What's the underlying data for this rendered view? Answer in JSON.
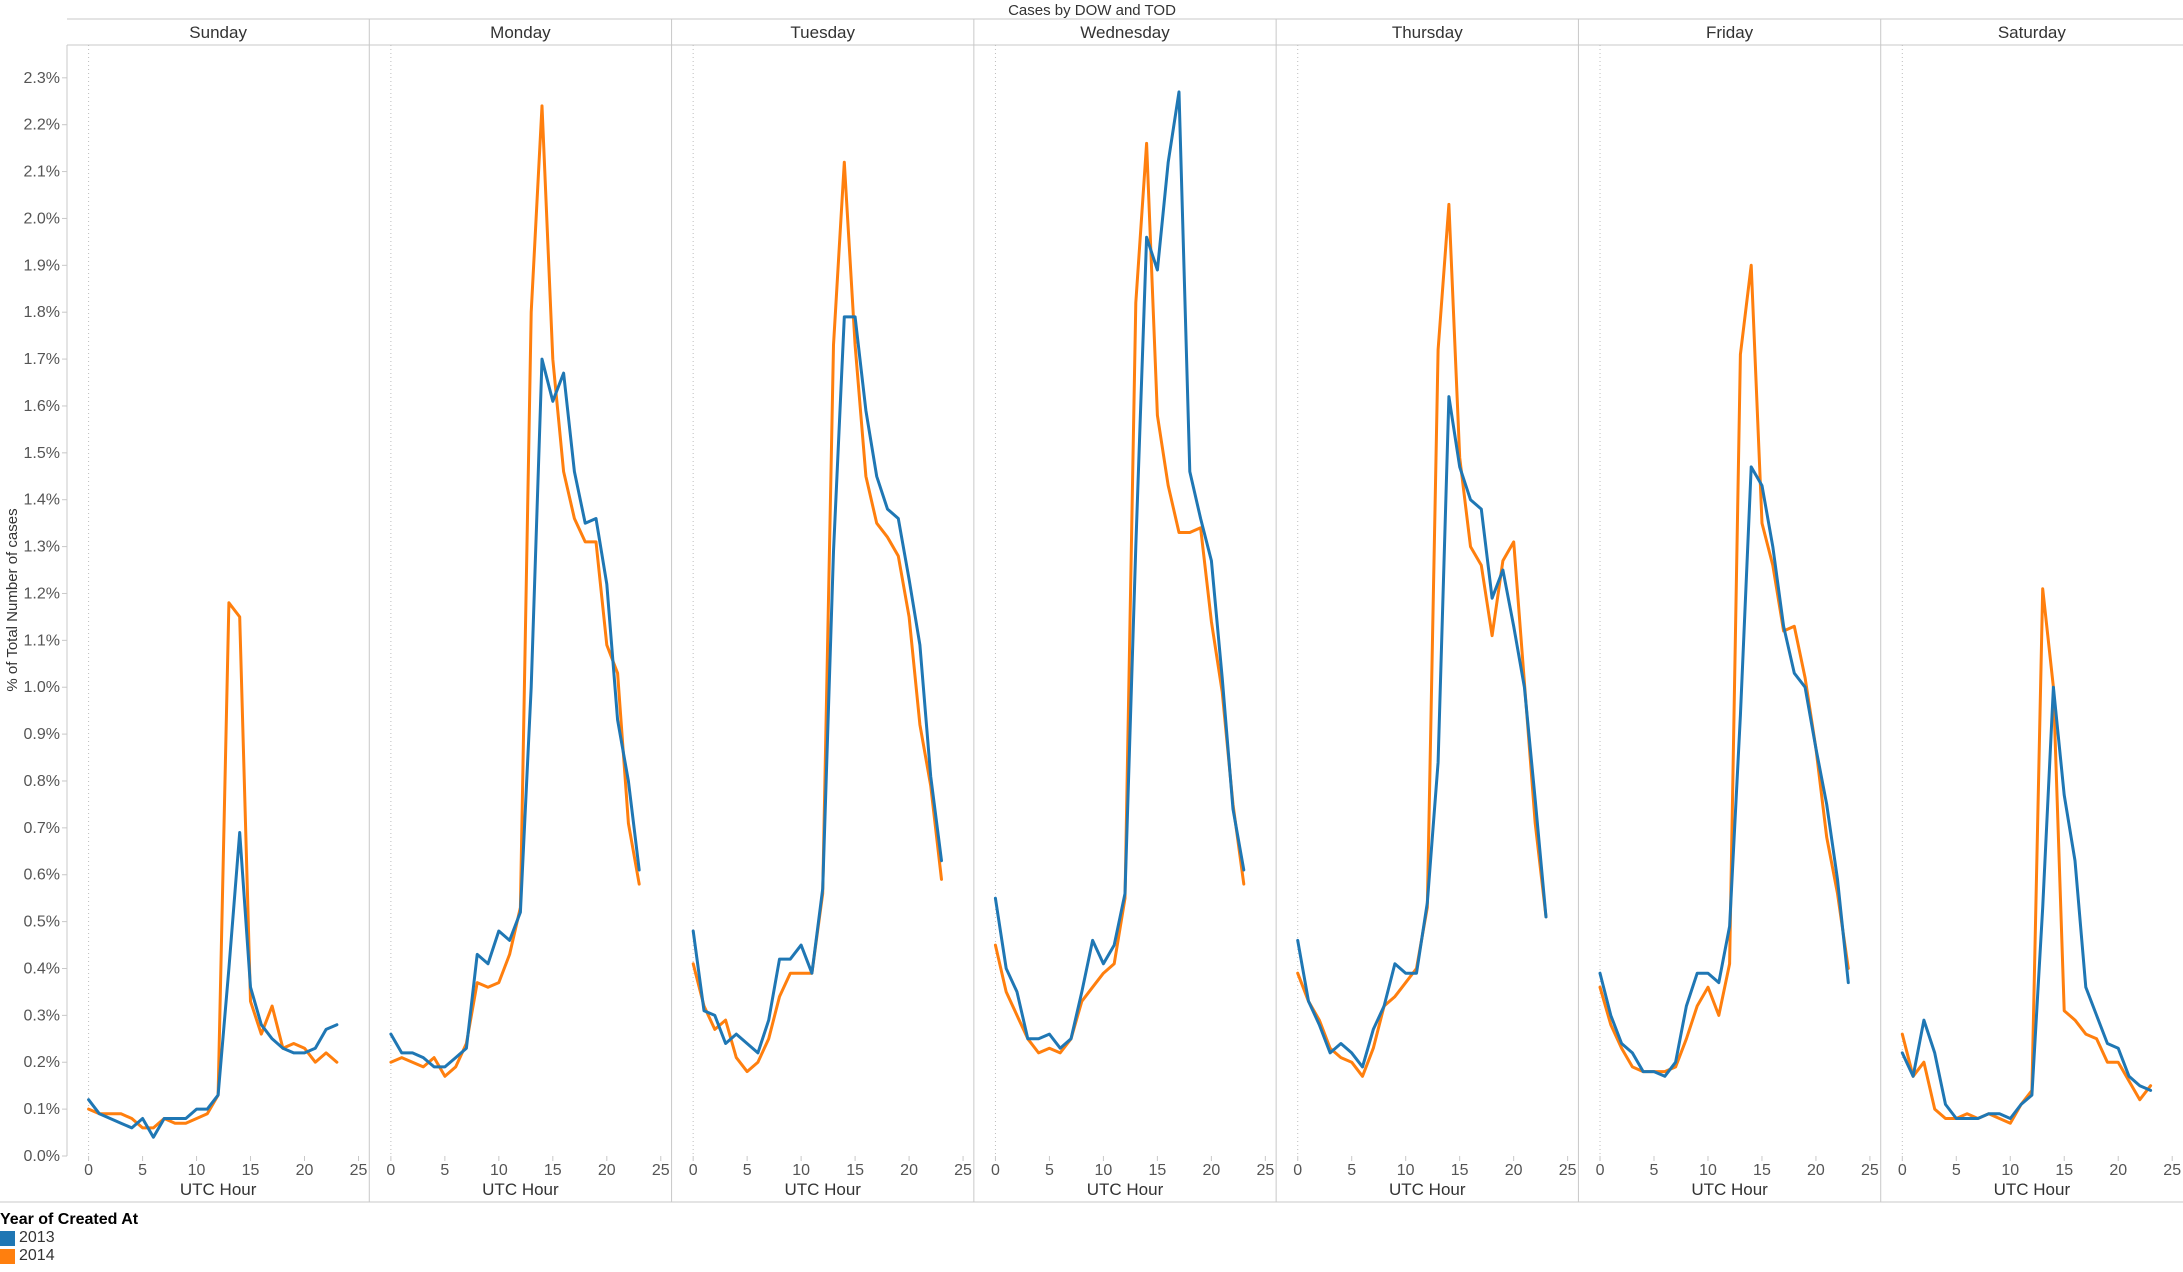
{
  "chart_data": {
    "type": "line",
    "title": "Cases by DOW and TOD",
    "panels": [
      "Sunday",
      "Monday",
      "Tuesday",
      "Wednesday",
      "Thursday",
      "Friday",
      "Saturday"
    ],
    "xlabel": "UTC Hour",
    "ylabel": "% of Total Number of cases",
    "xlim": [
      -2,
      26
    ],
    "ylim": [
      0,
      2.37
    ],
    "x_ticks": [
      0,
      5,
      10,
      15,
      20,
      25
    ],
    "y_ticks": [
      0.0,
      0.1,
      0.2,
      0.3,
      0.4,
      0.5,
      0.6,
      0.7,
      0.8,
      0.9,
      1.0,
      1.1,
      1.2,
      1.3,
      1.4,
      1.5,
      1.6,
      1.7,
      1.8,
      1.9,
      2.0,
      2.1,
      2.2,
      2.3
    ],
    "y_tick_labels": [
      "0.0%",
      "0.1%",
      "0.2%",
      "0.3%",
      "0.4%",
      "0.5%",
      "0.6%",
      "0.7%",
      "0.8%",
      "0.9%",
      "1.0%",
      "1.1%",
      "1.2%",
      "1.3%",
      "1.4%",
      "1.5%",
      "1.6%",
      "1.7%",
      "1.8%",
      "1.9%",
      "2.0%",
      "2.1%",
      "2.2%",
      "2.3%"
    ],
    "x": [
      0,
      1,
      2,
      3,
      4,
      5,
      6,
      7,
      8,
      9,
      10,
      11,
      12,
      13,
      14,
      15,
      16,
      17,
      18,
      19,
      20,
      21,
      22,
      23
    ],
    "grid": false,
    "legend_position": "bottom-left",
    "series": [
      {
        "name": "2013",
        "color": "#1f77b4",
        "values": {
          "Sunday": [
            0.12,
            0.09,
            0.08,
            0.07,
            0.06,
            0.08,
            0.04,
            0.08,
            0.08,
            0.08,
            0.1,
            0.1,
            0.13,
            0.4,
            0.69,
            0.36,
            0.28,
            0.25,
            0.23,
            0.22,
            0.22,
            0.23,
            0.27,
            0.28
          ],
          "Monday": [
            0.26,
            0.22,
            0.22,
            0.21,
            0.19,
            0.19,
            0.21,
            0.23,
            0.43,
            0.41,
            0.48,
            0.46,
            0.52,
            1.0,
            1.7,
            1.61,
            1.67,
            1.46,
            1.35,
            1.36,
            1.22,
            0.93,
            0.8,
            0.61
          ],
          "Tuesday": [
            0.48,
            0.31,
            0.3,
            0.24,
            0.26,
            0.24,
            0.22,
            0.29,
            0.42,
            0.42,
            0.45,
            0.39,
            0.57,
            1.29,
            1.79,
            1.79,
            1.59,
            1.45,
            1.38,
            1.36,
            1.23,
            1.09,
            0.81,
            0.63
          ],
          "Wednesday": [
            0.55,
            0.4,
            0.35,
            0.25,
            0.25,
            0.26,
            0.23,
            0.25,
            0.35,
            0.46,
            0.41,
            0.45,
            0.56,
            1.3,
            1.96,
            1.89,
            2.12,
            2.27,
            1.46,
            1.36,
            1.27,
            1.02,
            0.74,
            0.61
          ],
          "Thursday": [
            0.46,
            0.33,
            0.28,
            0.22,
            0.24,
            0.22,
            0.19,
            0.27,
            0.32,
            0.41,
            0.39,
            0.39,
            0.54,
            0.84,
            1.62,
            1.47,
            1.4,
            1.38,
            1.19,
            1.25,
            1.13,
            1.0,
            0.76,
            0.51
          ],
          "Friday": [
            0.39,
            0.3,
            0.24,
            0.22,
            0.18,
            0.18,
            0.17,
            0.2,
            0.32,
            0.39,
            0.39,
            0.37,
            0.49,
            0.94,
            1.47,
            1.43,
            1.3,
            1.13,
            1.03,
            1.0,
            0.87,
            0.75,
            0.59,
            0.37
          ],
          "Saturday": [
            0.22,
            0.17,
            0.29,
            0.22,
            0.11,
            0.08,
            0.08,
            0.08,
            0.09,
            0.09,
            0.08,
            0.11,
            0.13,
            0.53,
            1.0,
            0.77,
            0.63,
            0.36,
            0.3,
            0.24,
            0.23,
            0.17,
            0.15,
            0.14
          ]
        }
      },
      {
        "name": "2014",
        "color": "#ff7f0e",
        "values": {
          "Sunday": [
            0.1,
            0.09,
            0.09,
            0.09,
            0.08,
            0.06,
            0.06,
            0.08,
            0.07,
            0.07,
            0.08,
            0.09,
            0.13,
            1.18,
            1.15,
            0.33,
            0.26,
            0.32,
            0.23,
            0.24,
            0.23,
            0.2,
            0.22,
            0.2
          ],
          "Monday": [
            0.2,
            0.21,
            0.2,
            0.19,
            0.21,
            0.17,
            0.19,
            0.24,
            0.37,
            0.36,
            0.37,
            0.43,
            0.53,
            1.8,
            2.24,
            1.7,
            1.46,
            1.36,
            1.31,
            1.31,
            1.09,
            1.03,
            0.71,
            0.58
          ],
          "Tuesday": [
            0.41,
            0.32,
            0.27,
            0.29,
            0.21,
            0.18,
            0.2,
            0.25,
            0.34,
            0.39,
            0.39,
            0.39,
            0.56,
            1.73,
            2.12,
            1.73,
            1.45,
            1.35,
            1.32,
            1.28,
            1.15,
            0.92,
            0.79,
            0.59
          ],
          "Wednesday": [
            0.45,
            0.35,
            0.3,
            0.25,
            0.22,
            0.23,
            0.22,
            0.25,
            0.33,
            0.36,
            0.39,
            0.41,
            0.55,
            1.82,
            2.16,
            1.58,
            1.43,
            1.33,
            1.33,
            1.34,
            1.14,
            0.99,
            0.75,
            0.58
          ],
          "Thursday": [
            0.39,
            0.33,
            0.29,
            0.23,
            0.21,
            0.2,
            0.17,
            0.23,
            0.32,
            0.34,
            0.37,
            0.4,
            0.53,
            1.72,
            2.03,
            1.49,
            1.3,
            1.26,
            1.11,
            1.27,
            1.31,
            1.01,
            0.71,
            0.51
          ],
          "Friday": [
            0.36,
            0.28,
            0.23,
            0.19,
            0.18,
            0.18,
            0.18,
            0.19,
            0.25,
            0.32,
            0.36,
            0.3,
            0.41,
            1.71,
            1.9,
            1.35,
            1.26,
            1.12,
            1.13,
            1.02,
            0.87,
            0.68,
            0.56,
            0.4
          ],
          "Saturday": [
            0.26,
            0.17,
            0.2,
            0.1,
            0.08,
            0.08,
            0.09,
            0.08,
            0.09,
            0.08,
            0.07,
            0.11,
            0.14,
            1.21,
            1.0,
            0.31,
            0.29,
            0.26,
            0.25,
            0.2,
            0.2,
            0.16,
            0.12,
            0.15
          ]
        }
      }
    ]
  },
  "legend": {
    "title": "Year of Created At",
    "items": [
      {
        "label": "2013",
        "color": "#1f77b4"
      },
      {
        "label": "2014",
        "color": "#ff7f0e"
      }
    ]
  }
}
